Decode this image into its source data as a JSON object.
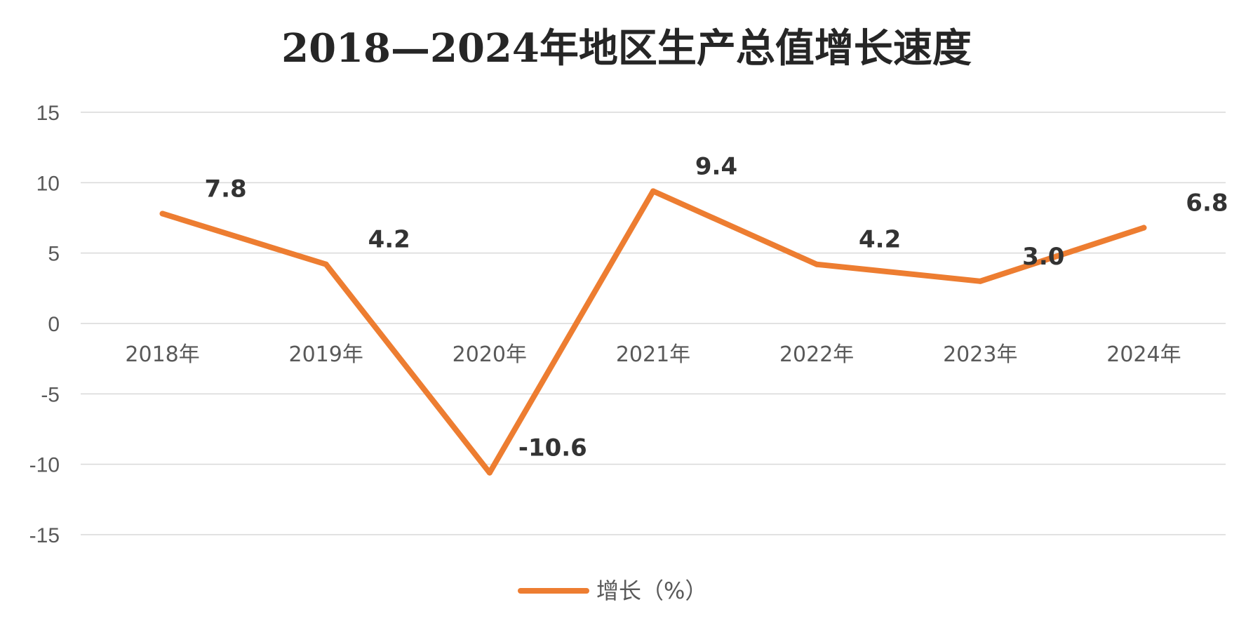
{
  "chart_data": {
    "type": "line",
    "title": "2018—2024年地区生产总值增长速度",
    "categories": [
      "2018年",
      "2019年",
      "2020年",
      "2021年",
      "2022年",
      "2023年",
      "2024年"
    ],
    "series": [
      {
        "name": "增长（%）",
        "color": "#ED7D31",
        "values": [
          7.8,
          4.2,
          -10.6,
          9.4,
          4.2,
          3.0,
          6.8
        ],
        "labels": [
          "7.8",
          "4.2",
          "-10.6",
          "9.4",
          "4.2",
          "3.0",
          "6.8"
        ]
      }
    ],
    "ylim": [
      -15,
      15
    ],
    "yticks": [
      15,
      10,
      5,
      0,
      -5,
      -10,
      -15
    ],
    "grid": true,
    "legend": "bottom-center",
    "xlabel": "",
    "ylabel": ""
  }
}
